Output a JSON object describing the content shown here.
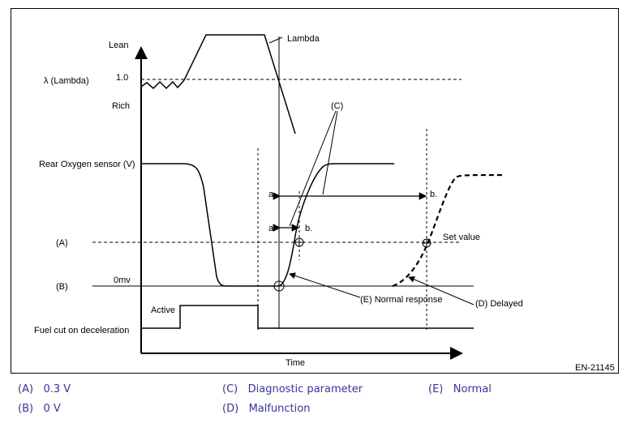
{
  "diagram": {
    "labels": {
      "lean": "Lean",
      "lambda_axis": "λ  (Lambda)",
      "one_point_zero": "1.0",
      "rich": "Rich",
      "lambda_curve": "Lambda",
      "rear_o2": "Rear Oxygen sensor (V)",
      "a_level": "(A)",
      "b_level": "(B)",
      "zero_mv": "0mv",
      "active": "Active",
      "fuel_cut": "Fuel cut on deceleration",
      "time": "Time",
      "c_callout": "(C)",
      "a_upper": "a.",
      "b_upper": "b.",
      "a_lower": "a.",
      "b_lower": "b.",
      "set_value": "Set value",
      "normal_response": "(E) Normal response",
      "delayed": "(D) Delayed",
      "figure_id": "EN-21145"
    }
  },
  "legend": [
    {
      "key": "(A)",
      "text": "0.3 V"
    },
    {
      "key": "(B)",
      "text": "0 V"
    },
    {
      "key": "(C)",
      "text": "Diagnostic parameter"
    },
    {
      "key": "(D)",
      "text": "Malfunction"
    },
    {
      "key": "(E)",
      "text": "Normal"
    }
  ]
}
